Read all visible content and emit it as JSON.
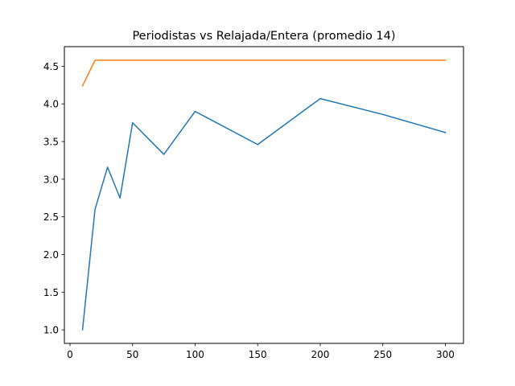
{
  "chart_data": {
    "type": "line",
    "title": "Periodistas vs Relajada/Entera (promedio 14)",
    "xlabel": "",
    "ylabel": "",
    "xlim": [
      -4.5,
      314.5
    ],
    "ylim": [
      0.82,
      4.76
    ],
    "xticks": [
      0,
      50,
      100,
      150,
      200,
      250,
      300
    ],
    "yticks": [
      1.0,
      1.5,
      2.0,
      2.5,
      3.0,
      3.5,
      4.0,
      4.5
    ],
    "ytick_labels": [
      "1.0",
      "1.5",
      "2.0",
      "2.5",
      "3.0",
      "3.5",
      "4.0",
      "4.5"
    ],
    "grid": false,
    "series": [
      {
        "color": "#1f77b4",
        "x": [
          10,
          20,
          30,
          40,
          50,
          75,
          100,
          150,
          200,
          250,
          300
        ],
        "values": [
          1.0,
          2.6,
          3.16,
          2.75,
          3.75,
          3.33,
          3.9,
          3.46,
          4.07,
          3.86,
          3.62
        ]
      },
      {
        "color": "#ff7f0e",
        "x": [
          10,
          20,
          30,
          40,
          50,
          75,
          100,
          150,
          200,
          250,
          300
        ],
        "values": [
          4.24,
          4.58,
          4.58,
          4.58,
          4.58,
          4.58,
          4.58,
          4.58,
          4.58,
          4.58,
          4.58
        ]
      }
    ]
  }
}
